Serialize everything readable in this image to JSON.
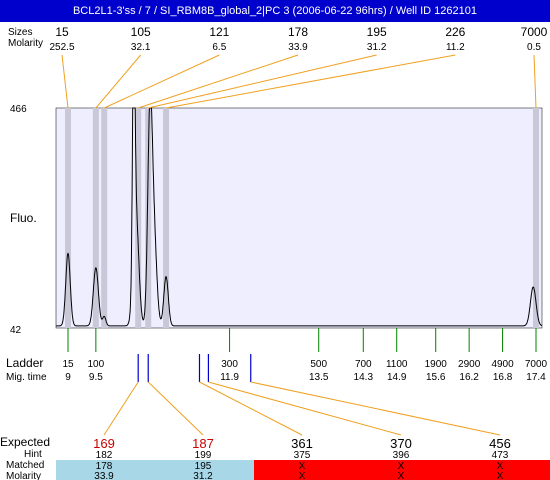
{
  "header": {
    "title": "BCL2L1-3'ss / 7 / SI_RBM8B_global_2|PC 3 (2006-06-22 96hrs) / Well ID 1262101"
  },
  "labels": {
    "sizes": "Sizes",
    "molarity": "Molarity",
    "fluo": "Fluo.",
    "ladder": "Ladder",
    "mig_time": "Mig. time",
    "expected": "Expected",
    "hint": "Hint",
    "matched": "Matched",
    "molarity_bottom": "Molarity"
  },
  "colors": {
    "header_bg": "#0000cc",
    "plot_bg": "#eeeeff",
    "band": "#c8c8d8",
    "trace": "#000000",
    "connector": "#f0a020",
    "ladder_tick": "#008000",
    "marker": "#0000cc",
    "expected_text": "#cc0000",
    "matched_bg": "#a8d8e8",
    "unmatched_bg": "#ff0000"
  },
  "chart_data": {
    "type": "line",
    "ylabel": "Fluo.",
    "ylim": [
      42,
      466
    ],
    "xlim": [
      9,
      17.4
    ],
    "peaks": [
      {
        "size": "15",
        "molarity": "252.5"
      },
      {
        "size": "105",
        "molarity": "32.1"
      },
      {
        "size": "121",
        "molarity": "6.5"
      },
      {
        "size": "178",
        "molarity": "33.9"
      },
      {
        "size": "195",
        "molarity": "31.2"
      },
      {
        "size": "226",
        "molarity": "11.2"
      },
      {
        "size": "7000",
        "molarity": "0.5"
      }
    ],
    "peak_times": [
      9.0,
      9.5,
      9.65,
      10.26,
      10.44,
      10.76,
      17.4
    ],
    "ladder": [
      {
        "size": "15",
        "time": "9"
      },
      {
        "size": "100",
        "time": "9.5"
      },
      {
        "size": "300",
        "time": "11.9"
      },
      {
        "size": "500",
        "time": "13.5"
      },
      {
        "size": "700",
        "time": "14.3"
      },
      {
        "size": "1100",
        "time": "14.9"
      },
      {
        "size": "1900",
        "time": "15.6"
      },
      {
        "size": "2900",
        "time": "16.2"
      },
      {
        "size": "4900",
        "time": "16.8"
      },
      {
        "size": "7000",
        "time": "17.4"
      }
    ],
    "trace": {
      "baseline": 46,
      "peaks": [
        {
          "t": 9.0,
          "h": 140,
          "w": 0.04
        },
        {
          "t": 9.5,
          "h": 112,
          "w": 0.045
        },
        {
          "t": 9.65,
          "h": 18,
          "w": 0.03
        },
        {
          "t": 10.18,
          "h": 445,
          "w": 0.022
        },
        {
          "t": 10.22,
          "h": 215,
          "w": 0.05
        },
        {
          "t": 10.47,
          "h": 380,
          "w": 0.04
        },
        {
          "t": 10.54,
          "h": 180,
          "w": 0.05
        },
        {
          "t": 10.76,
          "h": 95,
          "w": 0.04
        },
        {
          "t": 17.35,
          "h": 75,
          "w": 0.05
        }
      ]
    },
    "expected": [
      {
        "size": "169",
        "hint": "182",
        "matched": "178",
        "molarity": "33.9",
        "status": "matched"
      },
      {
        "size": "187",
        "hint": "199",
        "matched": "195",
        "molarity": "31.2",
        "status": "matched"
      },
      {
        "size": "361",
        "hint": "375",
        "matched": "X",
        "molarity": "X",
        "status": "unmatched"
      },
      {
        "size": "370",
        "hint": "396",
        "matched": "X",
        "molarity": "X",
        "status": "unmatched"
      },
      {
        "size": "456",
        "hint": "473",
        "matched": "X",
        "molarity": "X",
        "status": "unmatched"
      }
    ],
    "expected_times": [
      10.26,
      10.44,
      11.36,
      11.52,
      12.28
    ]
  }
}
